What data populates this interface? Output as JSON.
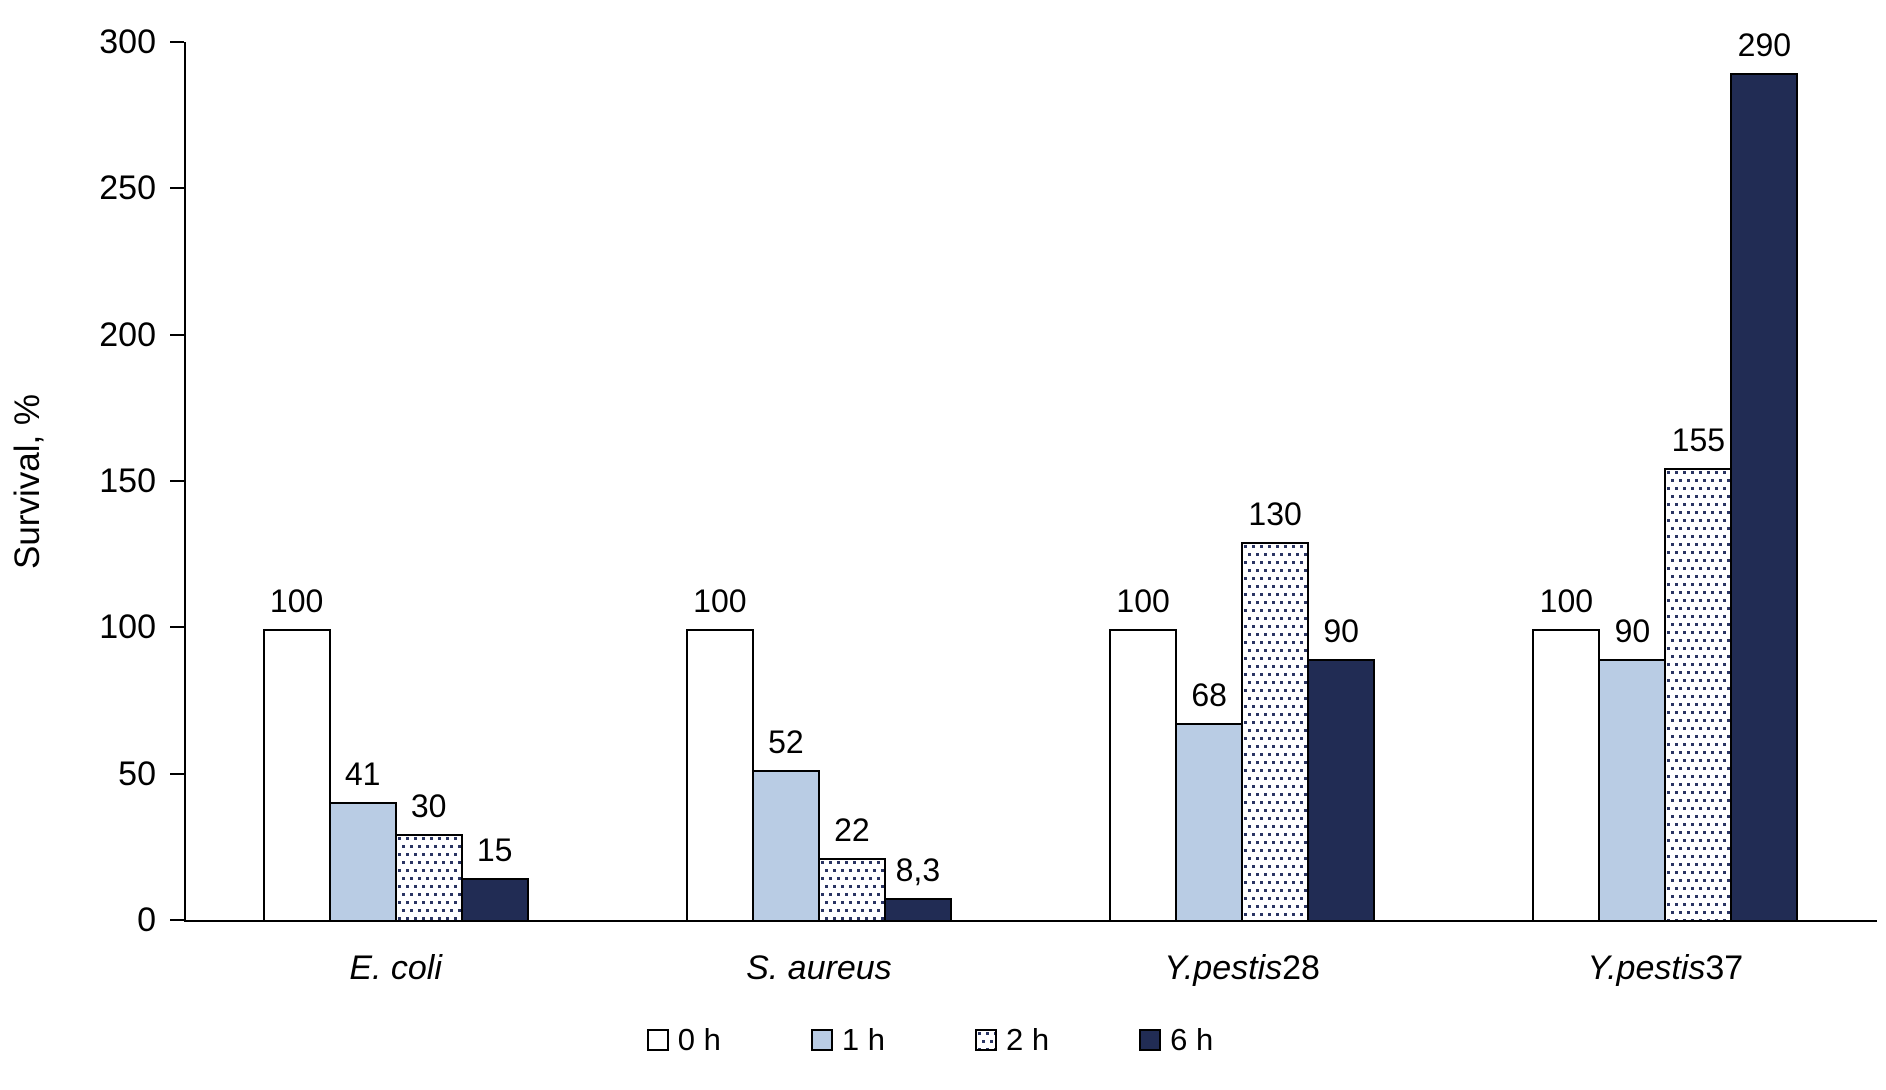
{
  "chart_data": {
    "type": "bar",
    "title": "",
    "ylabel": "Survival, %",
    "xlabel": "",
    "ylim": [
      0,
      300
    ],
    "ytick_step": 50,
    "yticks": [
      "0",
      "50",
      "100",
      "150",
      "200",
      "250",
      "300"
    ],
    "grid": false,
    "legend_position": "bottom",
    "categories": [
      "E. coli",
      "S. aureus",
      "Y.pestis28",
      "Y.pestis37"
    ],
    "category_label_parts": [
      {
        "italic": "E. coli",
        "plain": ""
      },
      {
        "italic": "S. aureus",
        "plain": ""
      },
      {
        "italic": "Y.pestis",
        "plain": "28"
      },
      {
        "italic": "Y.pestis",
        "plain": "37"
      }
    ],
    "series": [
      {
        "name": "0 h",
        "style": "white",
        "values": [
          100,
          100,
          100,
          100
        ],
        "value_labels": [
          "100",
          "100",
          "100",
          "100"
        ]
      },
      {
        "name": "1 h",
        "style": "lightblue",
        "values": [
          41,
          52,
          68,
          90
        ],
        "value_labels": [
          "41",
          "52",
          "68",
          "90"
        ]
      },
      {
        "name": "2 h",
        "style": "dotted",
        "values": [
          30,
          22,
          130,
          155
        ],
        "value_labels": [
          "30",
          "22",
          "130",
          "155"
        ]
      },
      {
        "name": "6 h",
        "style": "navy",
        "values": [
          15,
          8.3,
          90,
          290
        ],
        "value_labels": [
          "15",
          "8,3",
          "90",
          "290"
        ]
      }
    ],
    "colors": {
      "white": "#ffffff",
      "lightblue": "#b9cce4",
      "navy": "#212c54",
      "dot": "#2a3462",
      "border": "#000000",
      "axis": "#000000",
      "text": "#000000"
    }
  }
}
